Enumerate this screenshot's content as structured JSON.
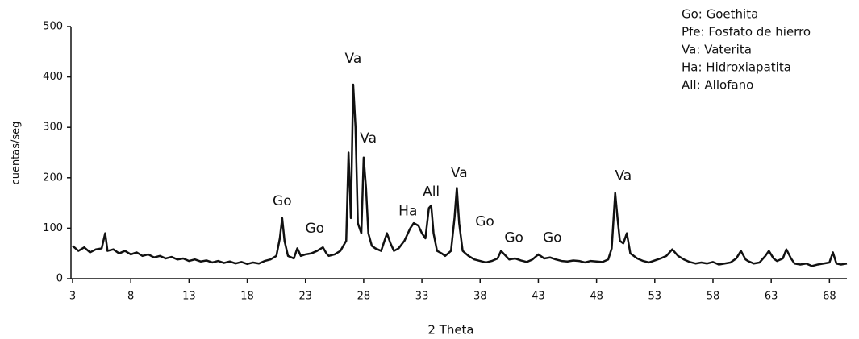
{
  "chart_data": {
    "type": "line",
    "x_label": "2 Theta",
    "y_label": "cuentas/seg",
    "color": "#111111",
    "xlim": [
      3,
      69.5
    ],
    "ylim": [
      0,
      500
    ],
    "xticks": [
      3,
      8,
      13,
      18,
      23,
      28,
      33,
      38,
      43,
      48,
      53,
      58,
      63,
      68
    ],
    "yticks": [
      0,
      100,
      200,
      300,
      400,
      500
    ],
    "notes": [
      "Go: Goethita",
      "Pfe: Fosfato de hierro",
      "Va:  Vaterita",
      "Ha:  Hidroxiapatita",
      "All:  Allofano"
    ],
    "annotations": [
      {
        "text": "Go",
        "x": 21,
        "y": 153
      },
      {
        "text": "Go",
        "x": 23.8,
        "y": 99
      },
      {
        "text": "Va",
        "x": 27.1,
        "y": 436
      },
      {
        "text": "Va",
        "x": 28.4,
        "y": 278
      },
      {
        "text": "Ha",
        "x": 31.8,
        "y": 133
      },
      {
        "text": "All",
        "x": 33.8,
        "y": 172
      },
      {
        "text": "Va",
        "x": 36.2,
        "y": 209
      },
      {
        "text": "Go",
        "x": 38.4,
        "y": 113
      },
      {
        "text": "Go",
        "x": 40.9,
        "y": 81
      },
      {
        "text": "Go",
        "x": 44.2,
        "y": 81
      },
      {
        "text": "Va",
        "x": 50.3,
        "y": 204
      }
    ],
    "x": [
      3,
      3.5,
      4,
      4.5,
      5,
      5.5,
      5.8,
      6,
      6.5,
      7,
      7.5,
      8,
      8.5,
      9,
      9.5,
      10,
      10.5,
      11,
      11.5,
      12,
      12.5,
      13,
      13.5,
      14,
      14.5,
      15,
      15.5,
      16,
      16.5,
      17,
      17.5,
      18,
      18.5,
      19,
      19.5,
      20,
      20.5,
      20.8,
      21,
      21.2,
      21.5,
      22,
      22.3,
      22.6,
      23,
      23.5,
      24,
      24.5,
      24.8,
      25,
      25.5,
      26,
      26.5,
      26.7,
      26.9,
      27.1,
      27.3,
      27.5,
      27.8,
      28,
      28.2,
      28.4,
      28.7,
      29,
      29.5,
      30,
      30.3,
      30.6,
      31,
      31.5,
      32,
      32.3,
      32.7,
      33,
      33.3,
      33.6,
      33.8,
      34,
      34.3,
      34.7,
      35,
      35.5,
      35.8,
      36,
      36.2,
      36.5,
      37,
      37.5,
      38,
      38.5,
      39,
      39.5,
      39.8,
      40,
      40.5,
      41,
      41.5,
      42,
      42.5,
      43,
      43.5,
      44,
      44.5,
      45,
      45.5,
      46,
      46.5,
      47,
      47.5,
      48,
      48.5,
      49,
      49.3,
      49.6,
      49.8,
      50,
      50.3,
      50.6,
      50.9,
      51.5,
      52,
      52.5,
      53,
      53.5,
      54,
      54.5,
      55,
      55.5,
      56,
      56.5,
      57,
      57.5,
      58,
      58.5,
      59,
      59.5,
      60,
      60.4,
      60.8,
      61,
      61.5,
      62,
      62.5,
      62.8,
      63.2,
      63.5,
      64,
      64.3,
      64.7,
      65,
      65.5,
      66,
      66.5,
      67,
      67.5,
      68,
      68.3,
      68.6,
      69,
      69.5
    ],
    "values": [
      65,
      55,
      62,
      52,
      58,
      60,
      90,
      55,
      58,
      50,
      55,
      48,
      52,
      45,
      48,
      42,
      45,
      40,
      43,
      38,
      40,
      35,
      38,
      34,
      36,
      32,
      35,
      31,
      34,
      30,
      33,
      29,
      32,
      30,
      35,
      38,
      45,
      80,
      120,
      75,
      45,
      40,
      60,
      45,
      48,
      50,
      55,
      62,
      50,
      45,
      48,
      55,
      75,
      250,
      120,
      385,
      300,
      110,
      90,
      240,
      180,
      90,
      65,
      60,
      55,
      90,
      70,
      55,
      60,
      75,
      100,
      110,
      105,
      90,
      80,
      140,
      145,
      90,
      55,
      50,
      45,
      55,
      120,
      180,
      110,
      55,
      45,
      38,
      35,
      32,
      35,
      40,
      55,
      50,
      38,
      40,
      36,
      33,
      38,
      48,
      40,
      42,
      38,
      35,
      34,
      36,
      35,
      32,
      35,
      34,
      33,
      38,
      60,
      170,
      120,
      75,
      70,
      90,
      50,
      40,
      35,
      32,
      36,
      40,
      45,
      58,
      45,
      38,
      33,
      30,
      32,
      30,
      33,
      28,
      30,
      32,
      40,
      55,
      38,
      35,
      30,
      32,
      45,
      55,
      40,
      35,
      40,
      58,
      40,
      30,
      28,
      30,
      25,
      28,
      30,
      32,
      52,
      30,
      28,
      30
    ]
  }
}
